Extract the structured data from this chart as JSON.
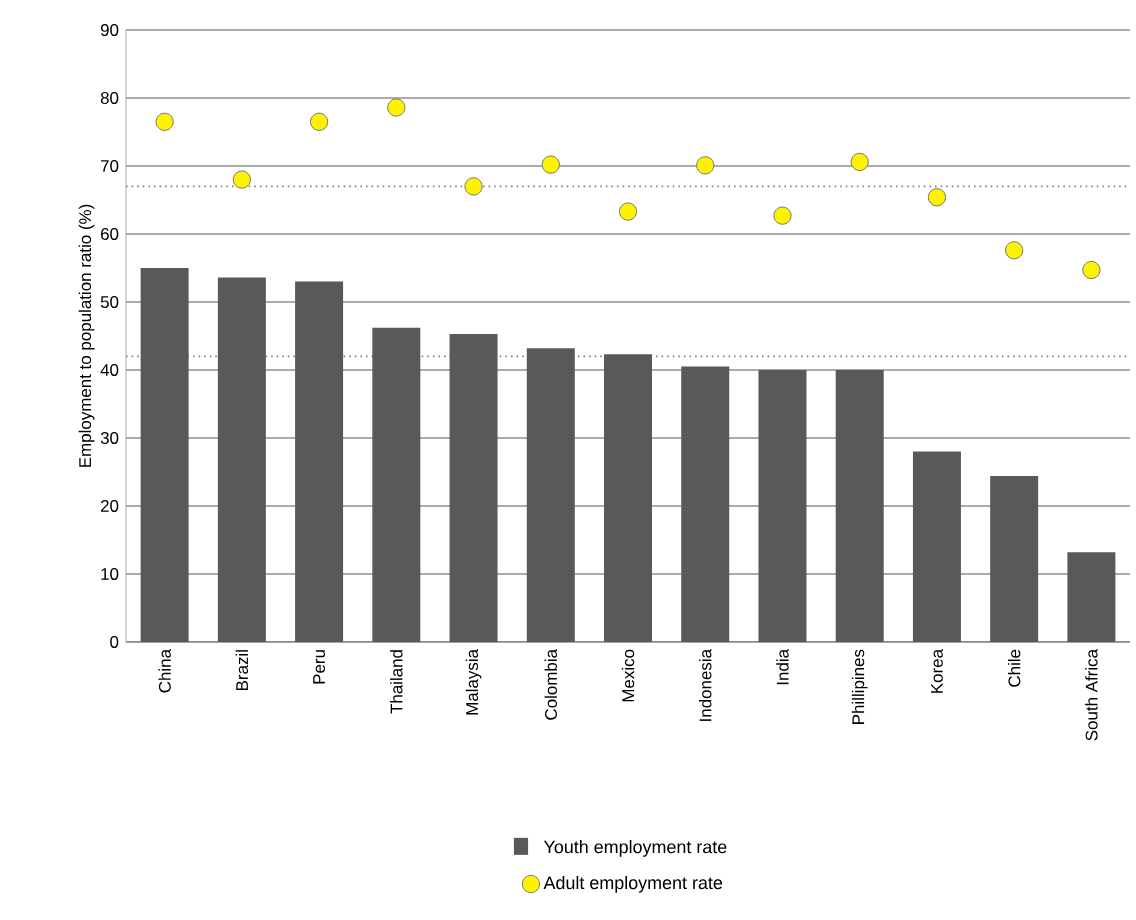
{
  "chart_data": {
    "type": "bar",
    "ylabel": "Employment to population ratio (%)",
    "categories": [
      "China",
      "Brazil",
      "Peru",
      "Thailand",
      "Malaysia",
      "Colombia",
      "Mexico",
      "Indonesia",
      "India",
      "Phillipines",
      "Korea",
      "Chile",
      "South Africa"
    ],
    "series": [
      {
        "name": "Youth employment rate",
        "color": "#58595b",
        "values": [
          55,
          53.6,
          53,
          46.2,
          45.3,
          43.2,
          42.3,
          40.5,
          40,
          40,
          28,
          24.4,
          13.2
        ]
      },
      {
        "name": "Adult employment rate",
        "type": "scatter",
        "marker": "circle",
        "color": "#fff200",
        "values": [
          76.5,
          68,
          76.5,
          78.6,
          67,
          70.2,
          63.3,
          70.1,
          62.7,
          70.6,
          65.4,
          57.6,
          54.7
        ]
      }
    ],
    "ref_lines": [
      {
        "axis": "y",
        "value": 67,
        "line_style": "dotted",
        "color": "#808080"
      },
      {
        "axis": "y",
        "value": 42,
        "line_style": "dotted",
        "color": "#808080"
      }
    ],
    "ylim": [
      0,
      90
    ],
    "yticks": [
      0,
      10,
      20,
      30,
      40,
      50,
      60,
      70,
      80,
      90
    ],
    "grid": "y",
    "legend": "bottom"
  }
}
